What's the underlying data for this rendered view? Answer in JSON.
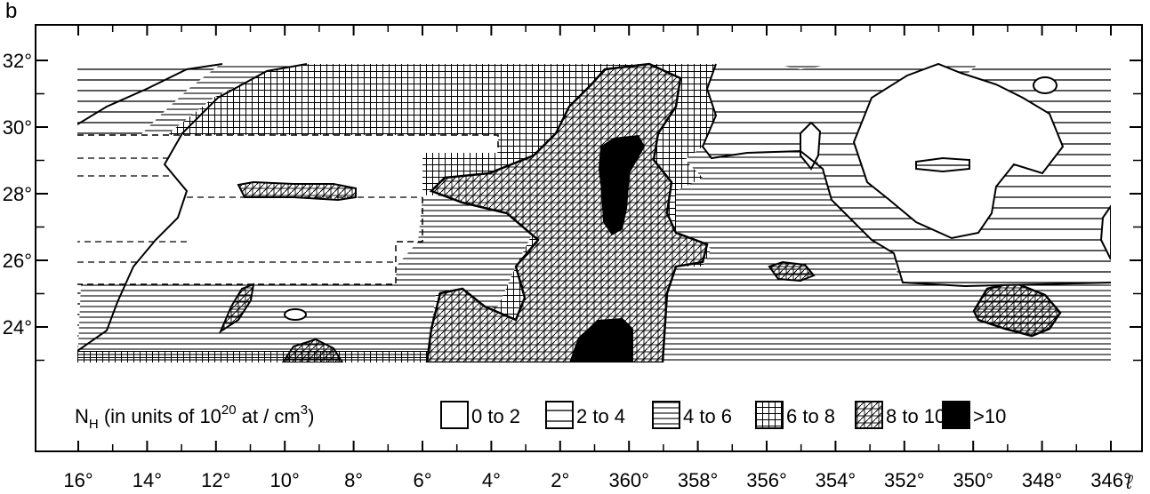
{
  "panel_label": "b",
  "x_axis": {
    "labels": [
      "16°",
      "14°",
      "12°",
      "10°",
      "8°",
      "6°",
      "4°",
      "2°",
      "360°",
      "358°",
      "356°",
      "354°",
      "352°",
      "350°",
      "348°",
      "346°"
    ],
    "unit_symbol": "ℓ"
  },
  "y_axis": {
    "labels": [
      "32°",
      "30°",
      "28°",
      "26°",
      "24°"
    ]
  },
  "legend": {
    "title_prefix": "N",
    "title_subscript": "H",
    "title_mid": " (in units of 10",
    "title_superscript": "20",
    "title_suffix": " at / cm",
    "title_suffix_sup": "3",
    "title_close": ")",
    "items": [
      {
        "label": "0 to 2",
        "pattern": "none"
      },
      {
        "label": "2 to 4",
        "pattern": "sparse-horizontal"
      },
      {
        "label": "4 to 6",
        "pattern": "dense-horizontal"
      },
      {
        "label": "6 to 8",
        "pattern": "grid"
      },
      {
        "label": "8 to 10",
        "pattern": "hatched-grid"
      },
      {
        "label": ">10",
        "pattern": "solid"
      }
    ]
  },
  "colors": {
    "ink": "#000000",
    "paper": "#ffffff"
  }
}
